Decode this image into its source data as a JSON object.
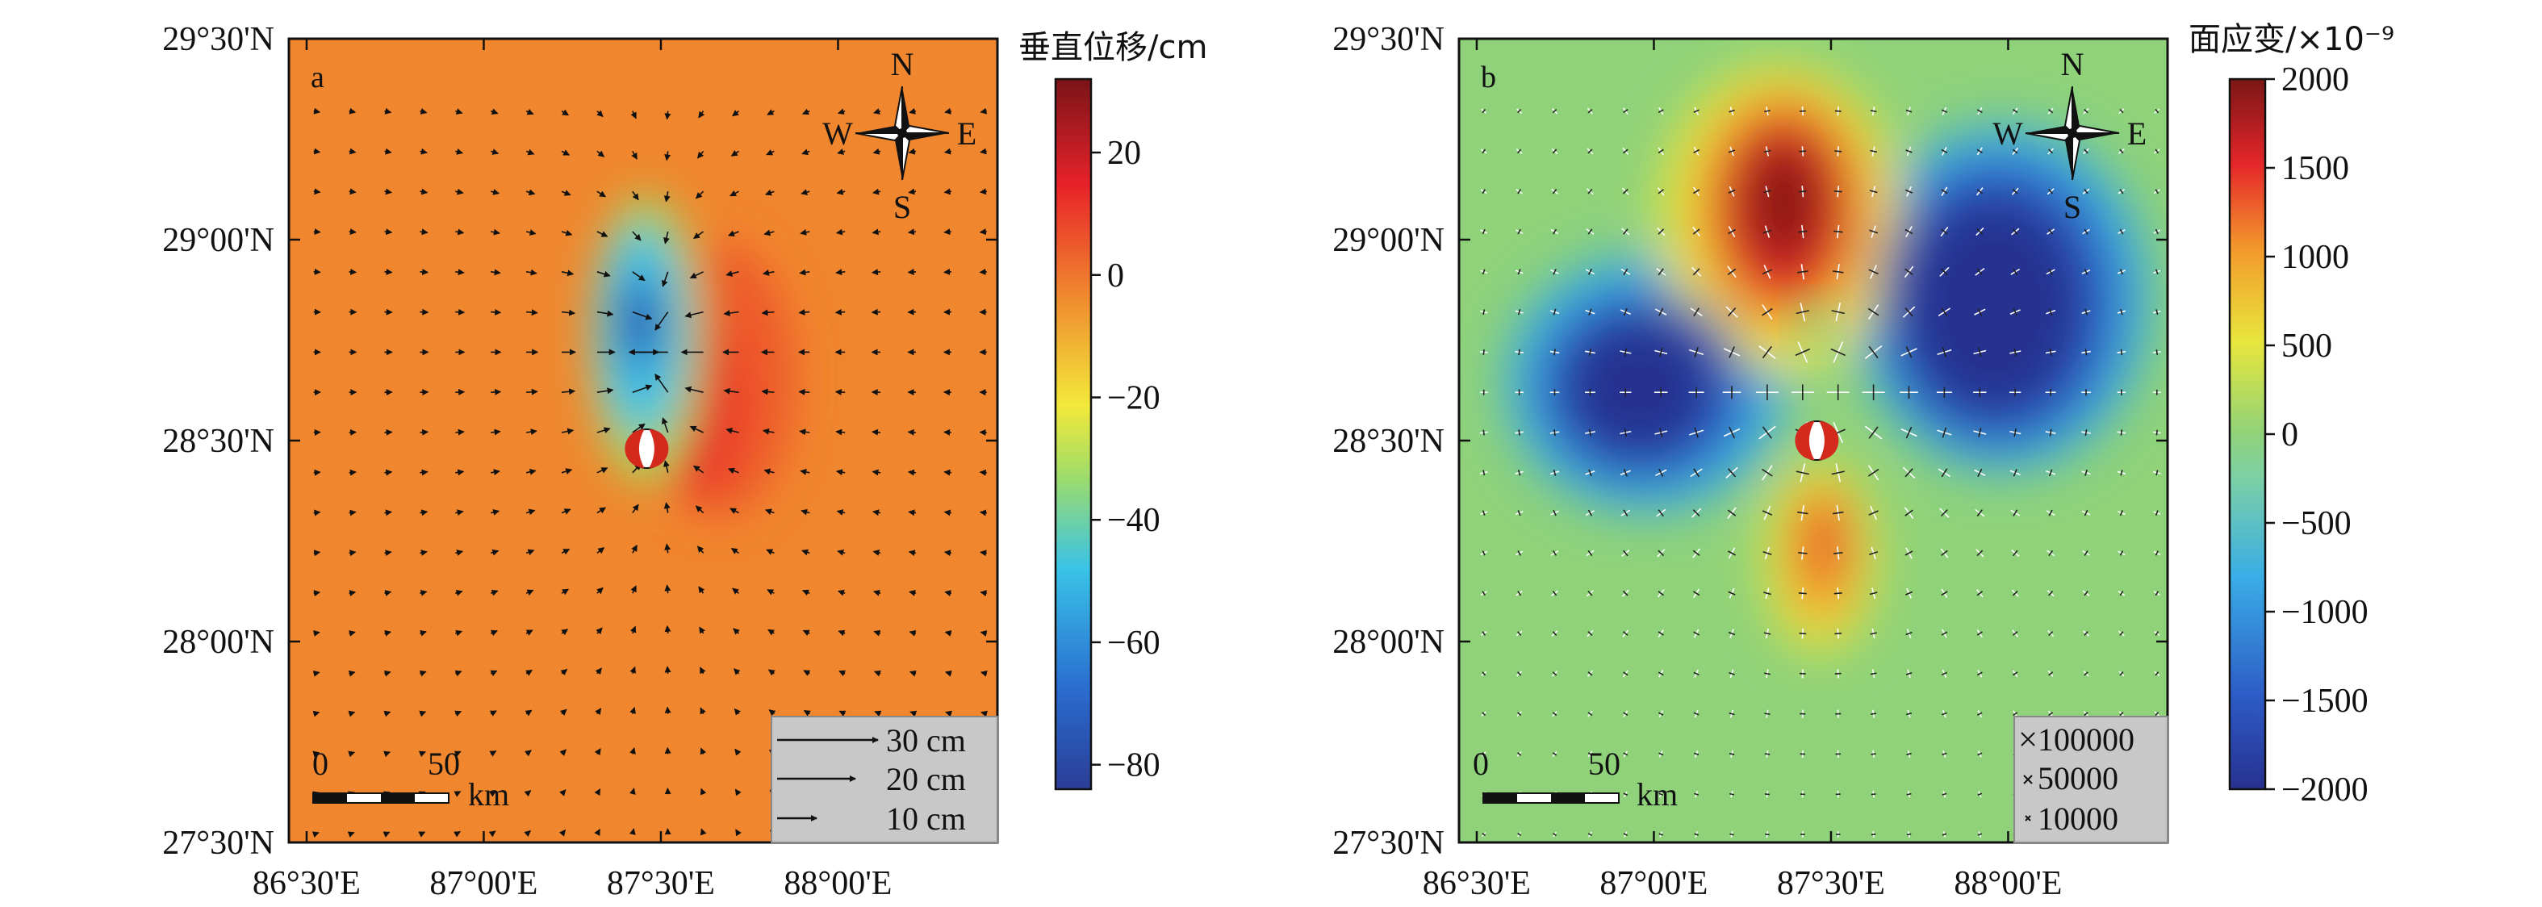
{
  "chart_data": [
    {
      "type": "heatmap",
      "panel_label": "a",
      "colorbar_title": "垂直位移/cm",
      "colorbar_ticks": [
        20,
        0,
        -20,
        -40,
        -60,
        -80
      ],
      "colorbar_tick_labels": [
        "20",
        "0",
        "−20",
        "−40",
        "−60",
        "−80"
      ],
      "colorbar_range": [
        -84,
        32
      ],
      "xlim": [
        86.45,
        88.45
      ],
      "ylim": [
        27.5,
        29.5
      ],
      "x_ticks": [
        86.5,
        87.0,
        87.5,
        88.0
      ],
      "x_tick_labels": [
        "86°30'E",
        "87°00'E",
        "87°30'E",
        "88°00'E"
      ],
      "y_ticks": [
        27.5,
        28.0,
        28.5,
        29.0,
        29.5
      ],
      "y_tick_labels": [
        "27°30'N",
        "28°00'N",
        "28°30'N",
        "29°00'N",
        "29°30'N"
      ],
      "field_features": [
        {
          "kind": "subsidence",
          "lon": 87.46,
          "lat": 28.78,
          "value_cm": -80
        },
        {
          "kind": "uplift",
          "lon": 87.6,
          "lat": 28.68,
          "value_cm": 22
        }
      ],
      "epicenter": {
        "lon": 87.46,
        "lat": 28.48
      },
      "compass": {
        "n": "N",
        "s": "S",
        "e": "E",
        "w": "W"
      },
      "scale_bar": {
        "start_label": "0",
        "mid_label": "50",
        "unit": "km"
      },
      "vector_legend": [
        {
          "length_cm": 30,
          "label": "30 cm"
        },
        {
          "length_cm": 20,
          "label": "20 cm"
        },
        {
          "length_cm": 10,
          "label": "10 cm"
        }
      ],
      "vector_field": "horizontal displacement arrows converging toward the rupture"
    },
    {
      "type": "heatmap",
      "panel_label": "b",
      "colorbar_title": "面应变/×10⁻⁹",
      "colorbar_ticks": [
        2000,
        1500,
        1000,
        500,
        0,
        -500,
        -1000,
        -1500,
        -2000
      ],
      "colorbar_tick_labels": [
        "2000",
        "1500",
        "1000",
        "500",
        "0",
        "−500",
        "−1000",
        "−1500",
        "−2000"
      ],
      "colorbar_range": [
        -2000,
        2000
      ],
      "xlim": [
        86.45,
        88.45
      ],
      "ylim": [
        27.5,
        29.5
      ],
      "x_ticks": [
        86.5,
        87.0,
        87.5,
        88.0
      ],
      "x_tick_labels": [
        "86°30'E",
        "87°00'E",
        "87°30'E",
        "88°00'E"
      ],
      "y_ticks": [
        27.5,
        28.0,
        28.5,
        29.0,
        29.5
      ],
      "y_tick_labels": [
        "27°30'N",
        "28°00'N",
        "28°30'N",
        "29°00'N",
        "29°30'N"
      ],
      "field_features": [
        {
          "kind": "dilatation",
          "lon": 87.42,
          "lat": 29.08,
          "value": 2000
        },
        {
          "kind": "dilatation",
          "lon": 87.48,
          "lat": 28.25,
          "value": 1500
        },
        {
          "kind": "compression",
          "lon": 87.0,
          "lat": 28.68,
          "value": -2000
        },
        {
          "kind": "compression",
          "lon": 87.95,
          "lat": 28.95,
          "value": -2000
        }
      ],
      "epicenter": {
        "lon": 87.46,
        "lat": 28.5
      },
      "compass": {
        "n": "N",
        "s": "S",
        "e": "E",
        "w": "W"
      },
      "scale_bar": {
        "start_label": "0",
        "mid_label": "50",
        "unit": "km"
      },
      "strain_legend": [
        "100000",
        "50000",
        "10000"
      ],
      "vector_field": "principal strain crosses"
    }
  ],
  "colors": {
    "background_a": "#f0862e",
    "legend_box": "#c8c8c8",
    "beachball_red": "#d42a1e"
  }
}
